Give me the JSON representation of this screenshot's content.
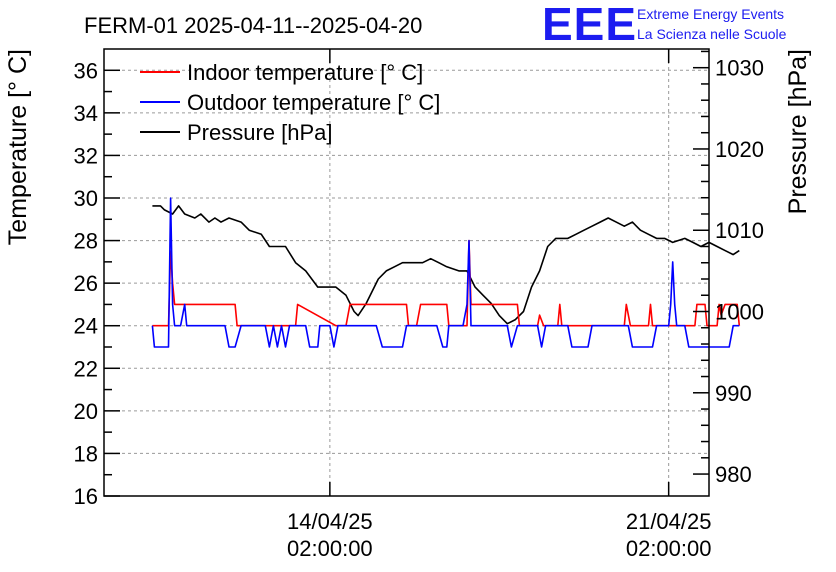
{
  "header": {
    "title": "FERM-01 2025-04-11--2025-04-20",
    "logo_text": "EEE",
    "logo_line1": "Extreme Energy Events",
    "logo_line2": "La Scienza nelle Scuole"
  },
  "colors": {
    "indoor": "#ff0000",
    "outdoor": "#0000ff",
    "pressure": "#000000",
    "logo": "#1c1cf0",
    "grid": "#9a9a9a"
  },
  "chart_data": {
    "type": "line",
    "x_unit": "hours since 11/04/25 02:00:00",
    "xlim": [
      -40,
      260
    ],
    "x_ticks": [
      {
        "x": 72,
        "line1": "14/04/25",
        "line2": "02:00:00"
      },
      {
        "x": 240,
        "line1": "21/04/25",
        "line2": "02:00:00"
      }
    ],
    "left_axis": {
      "label": "Temperature [° C]",
      "ylim": [
        16,
        37
      ],
      "ticks": [
        "16",
        "18",
        "20",
        "22",
        "24",
        "26",
        "28",
        "30",
        "32",
        "34",
        "36"
      ]
    },
    "right_axis": {
      "label": "Pressure [hPa]",
      "ylim": [
        977.3,
        1032.3
      ],
      "ticks": [
        "980",
        "990",
        "1000",
        "1010",
        "1020",
        "1030"
      ]
    },
    "grid": true,
    "legend": {
      "position": "top-left",
      "entries": [
        {
          "label": "Indoor temperature [° C]",
          "color": "#ff0000"
        },
        {
          "label": "Outdoor temperature [° C]",
          "color": "#0000ff"
        },
        {
          "label": "Pressure [hPa]",
          "color": "#000000"
        }
      ]
    },
    "series": [
      {
        "name": "Indoor temperature [° C]",
        "axis": "left",
        "color": "#ff0000",
        "points": [
          [
            -16,
            24
          ],
          [
            -8,
            24
          ],
          [
            -7,
            27.5
          ],
          [
            -6,
            26
          ],
          [
            -5,
            25
          ],
          [
            0,
            25
          ],
          [
            3,
            25
          ],
          [
            5,
            25
          ],
          [
            15,
            25
          ],
          [
            25,
            25
          ],
          [
            26,
            24
          ],
          [
            55,
            24
          ],
          [
            56,
            25
          ],
          [
            75,
            24
          ],
          [
            80,
            24
          ],
          [
            82,
            25
          ],
          [
            90,
            25
          ],
          [
            100,
            25
          ],
          [
            110,
            25
          ],
          [
            111,
            24
          ],
          [
            115,
            24
          ],
          [
            117,
            25
          ],
          [
            130,
            25
          ],
          [
            131,
            24
          ],
          [
            140,
            24
          ],
          [
            141,
            28
          ],
          [
            142,
            25
          ],
          [
            145,
            25
          ],
          [
            155,
            25
          ],
          [
            165,
            25
          ],
          [
            166,
            24
          ],
          [
            175,
            24
          ],
          [
            176,
            24.5
          ],
          [
            178,
            24
          ],
          [
            185,
            24
          ],
          [
            186,
            25
          ],
          [
            187,
            24
          ],
          [
            200,
            24
          ],
          [
            215,
            24
          ],
          [
            218,
            24
          ],
          [
            219,
            25
          ],
          [
            221,
            24
          ],
          [
            230,
            24
          ],
          [
            231,
            25
          ],
          [
            232,
            24
          ],
          [
            240,
            24
          ],
          [
            253,
            24
          ],
          [
            254,
            25
          ],
          [
            256,
            25
          ],
          [
            258,
            25
          ],
          [
            259,
            24
          ],
          [
            264,
            24
          ],
          [
            265,
            25
          ],
          [
            266,
            24.5
          ],
          [
            268,
            25
          ],
          [
            274,
            25
          ],
          [
            275,
            24
          ]
        ]
      },
      {
        "name": "Outdoor temperature [° C]",
        "axis": "left",
        "color": "#0000ff",
        "points": [
          [
            -16,
            24
          ],
          [
            -15,
            23
          ],
          [
            -10,
            23
          ],
          [
            -8,
            23
          ],
          [
            -7,
            30
          ],
          [
            -6,
            25
          ],
          [
            -5,
            24
          ],
          [
            -2,
            24
          ],
          [
            0,
            25
          ],
          [
            1,
            24
          ],
          [
            20,
            24
          ],
          [
            22,
            23
          ],
          [
            25,
            23
          ],
          [
            28,
            24
          ],
          [
            40,
            24
          ],
          [
            42,
            23
          ],
          [
            44,
            24
          ],
          [
            46,
            23
          ],
          [
            48,
            24
          ],
          [
            50,
            23
          ],
          [
            52,
            24
          ],
          [
            55,
            24
          ],
          [
            56,
            24
          ],
          [
            60,
            24
          ],
          [
            62,
            23
          ],
          [
            66,
            23
          ],
          [
            67,
            24
          ],
          [
            72,
            24
          ],
          [
            74,
            23
          ],
          [
            76,
            24
          ],
          [
            80,
            24
          ],
          [
            95,
            24
          ],
          [
            98,
            23
          ],
          [
            108,
            23
          ],
          [
            110,
            24
          ],
          [
            120,
            24
          ],
          [
            125,
            24
          ],
          [
            128,
            23
          ],
          [
            130,
            23
          ],
          [
            131,
            24
          ],
          [
            138,
            24
          ],
          [
            140,
            25
          ],
          [
            141,
            28
          ],
          [
            142,
            24
          ],
          [
            145,
            24
          ],
          [
            150,
            24
          ],
          [
            155,
            24
          ],
          [
            160,
            24
          ],
          [
            162,
            23
          ],
          [
            165,
            24
          ],
          [
            170,
            24
          ],
          [
            175,
            24
          ],
          [
            177,
            23
          ],
          [
            179,
            24
          ],
          [
            185,
            24
          ],
          [
            190,
            24
          ],
          [
            192,
            23
          ],
          [
            200,
            23
          ],
          [
            202,
            24
          ],
          [
            210,
            24
          ],
          [
            220,
            24
          ],
          [
            222,
            23
          ],
          [
            232,
            23
          ],
          [
            234,
            24
          ],
          [
            240,
            24
          ],
          [
            241,
            25
          ],
          [
            242,
            27
          ],
          [
            243,
            25
          ],
          [
            244,
            24
          ],
          [
            245,
            24
          ],
          [
            248,
            24
          ],
          [
            250,
            23
          ],
          [
            270,
            23
          ],
          [
            272,
            24
          ],
          [
            275,
            24
          ]
        ]
      },
      {
        "name": "Pressure [hPa]",
        "axis": "right",
        "color": "#000000",
        "points": [
          [
            -16,
            1013
          ],
          [
            -12,
            1013
          ],
          [
            -10,
            1012.5
          ],
          [
            -6,
            1012
          ],
          [
            -3,
            1013
          ],
          [
            0,
            1012
          ],
          [
            5,
            1011.5
          ],
          [
            8,
            1012
          ],
          [
            12,
            1011
          ],
          [
            15,
            1011.5
          ],
          [
            18,
            1011
          ],
          [
            22,
            1011.5
          ],
          [
            28,
            1011
          ],
          [
            32,
            1010
          ],
          [
            38,
            1009.5
          ],
          [
            42,
            1008
          ],
          [
            50,
            1008
          ],
          [
            55,
            1006
          ],
          [
            60,
            1005
          ],
          [
            66,
            1003
          ],
          [
            75,
            1003
          ],
          [
            80,
            1002
          ],
          [
            84,
            1000
          ],
          [
            86,
            999.5
          ],
          [
            90,
            1001
          ],
          [
            96,
            1004
          ],
          [
            100,
            1005
          ],
          [
            104,
            1005.5
          ],
          [
            108,
            1006
          ],
          [
            114,
            1006
          ],
          [
            118,
            1006
          ],
          [
            122,
            1006.5
          ],
          [
            126,
            1006
          ],
          [
            130,
            1005.5
          ],
          [
            136,
            1005
          ],
          [
            140,
            1005
          ],
          [
            144,
            1003
          ],
          [
            148,
            1002
          ],
          [
            152,
            1001
          ],
          [
            156,
            999.5
          ],
          [
            160,
            998.5
          ],
          [
            164,
            999
          ],
          [
            168,
            1000
          ],
          [
            172,
            1003
          ],
          [
            176,
            1005
          ],
          [
            180,
            1008
          ],
          [
            184,
            1009
          ],
          [
            190,
            1009
          ],
          [
            194,
            1009.5
          ],
          [
            198,
            1010
          ],
          [
            202,
            1010.5
          ],
          [
            206,
            1011
          ],
          [
            210,
            1011.5
          ],
          [
            214,
            1011
          ],
          [
            218,
            1010.5
          ],
          [
            222,
            1011
          ],
          [
            226,
            1010
          ],
          [
            230,
            1009.5
          ],
          [
            234,
            1009
          ],
          [
            238,
            1009
          ],
          [
            242,
            1008.5
          ],
          [
            248,
            1009
          ],
          [
            252,
            1008.5
          ],
          [
            256,
            1008
          ],
          [
            260,
            1008.5
          ],
          [
            264,
            1008
          ],
          [
            268,
            1007.5
          ],
          [
            272,
            1007
          ],
          [
            275,
            1007.5
          ]
        ]
      }
    ]
  }
}
